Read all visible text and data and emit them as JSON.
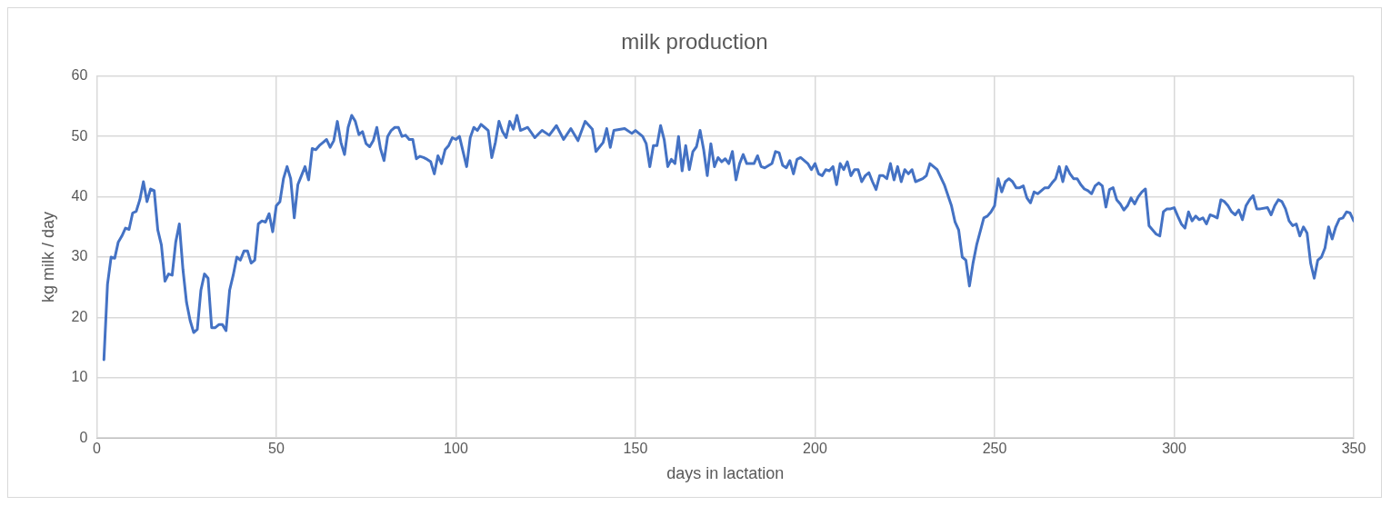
{
  "chart_data": {
    "type": "line",
    "title": "milk production",
    "xlabel": "days in lactation",
    "ylabel": "kg milk / day",
    "xlim": [
      0,
      350
    ],
    "xticks": [
      0,
      50,
      100,
      150,
      200,
      250,
      300,
      350
    ],
    "ylim": [
      0,
      60
    ],
    "yticks": [
      0,
      10,
      20,
      30,
      40,
      50,
      60
    ],
    "grid": true,
    "marker": "none",
    "line_style": "solid",
    "series": [
      {
        "color": "#4472c4",
        "x": [
          2,
          3,
          4,
          5,
          6,
          7,
          8,
          9,
          10,
          11,
          12,
          13,
          14,
          15,
          16,
          17,
          18,
          19,
          20,
          21,
          22,
          23,
          24,
          25,
          26,
          27,
          28,
          29,
          30,
          31,
          32,
          33,
          34,
          35,
          36,
          37,
          38,
          39,
          40,
          41,
          42,
          43,
          44,
          45,
          46,
          47,
          48,
          49,
          50,
          51,
          52,
          53,
          54,
          55,
          56,
          57,
          58,
          59,
          60,
          61,
          62,
          63,
          64,
          65,
          66,
          67,
          68,
          69,
          70,
          71,
          72,
          73,
          74,
          75,
          76,
          77,
          78,
          79,
          80,
          81,
          82,
          83,
          84,
          85,
          86,
          87,
          88,
          89,
          90,
          91,
          92,
          93,
          94,
          95,
          96,
          97,
          98,
          99,
          100,
          101,
          102,
          103,
          104,
          105,
          106,
          107,
          108,
          109,
          110,
          111,
          112,
          113,
          114,
          115,
          116,
          117,
          118,
          120,
          122,
          124,
          126,
          128,
          130,
          132,
          134,
          136,
          138,
          139,
          141,
          142,
          143,
          144,
          147,
          149,
          150,
          152,
          153,
          154,
          155,
          156,
          157,
          158,
          159,
          160,
          161,
          162,
          163,
          164,
          165,
          166,
          167,
          168,
          169,
          170,
          171,
          172,
          173,
          174,
          175,
          176,
          177,
          178,
          179,
          180,
          181,
          183,
          184,
          185,
          186,
          188,
          189,
          190,
          191,
          192,
          193,
          194,
          195,
          196,
          198,
          199,
          200,
          201,
          202,
          203,
          204,
          205,
          206,
          207,
          208,
          209,
          210,
          211,
          212,
          213,
          214,
          215,
          216,
          217,
          218,
          219,
          220,
          221,
          222,
          223,
          224,
          225,
          226,
          227,
          228,
          230,
          231,
          232,
          234,
          236,
          238,
          239,
          240,
          241,
          242,
          243,
          244,
          245,
          247,
          248,
          249,
          250,
          251,
          252,
          253,
          254,
          255,
          256,
          257,
          258,
          259,
          260,
          261,
          262,
          264,
          265,
          266,
          267,
          268,
          269,
          270,
          271,
          272,
          273,
          274,
          275,
          276,
          277,
          278,
          279,
          280,
          281,
          282,
          283,
          284,
          285,
          286,
          287,
          288,
          289,
          290,
          291,
          292,
          293,
          295,
          296,
          297,
          298,
          299,
          300,
          301,
          302,
          303,
          304,
          305,
          306,
          307,
          308,
          309,
          310,
          311,
          312,
          313,
          314,
          315,
          316,
          317,
          318,
          319,
          320,
          321,
          322,
          323,
          324,
          326,
          327,
          328,
          329,
          330,
          331,
          332,
          333,
          334,
          335,
          336,
          337,
          338,
          339,
          340,
          341,
          342,
          343,
          344,
          345,
          346,
          347,
          348,
          349,
          350
        ],
        "values": [
          13,
          25.5,
          30,
          29.8,
          32.5,
          33.5,
          34.8,
          34.6,
          37.3,
          37.6,
          39.5,
          42.5,
          39.2,
          41.3,
          41,
          34.5,
          32,
          26,
          27.2,
          27,
          32.5,
          35.5,
          28,
          22.5,
          19.5,
          17.5,
          18,
          24.5,
          27.2,
          26.5,
          18.3,
          18.3,
          18.8,
          18.8,
          17.8,
          24.5,
          27,
          30,
          29.5,
          31,
          31,
          29,
          29.5,
          35.5,
          36,
          35.8,
          37.2,
          34.2,
          38.5,
          39.2,
          43,
          45,
          43,
          36.5,
          42,
          43.5,
          45,
          42.8,
          48,
          47.8,
          48.5,
          49,
          49.5,
          48.2,
          49.3,
          52.5,
          49,
          47,
          51.5,
          53.5,
          52.5,
          50.3,
          50.8,
          48.8,
          48.3,
          49.3,
          51.5,
          48,
          46,
          50,
          51,
          51.5,
          51.5,
          50,
          50.2,
          49.5,
          49.5,
          46.3,
          46.7,
          46.5,
          46.2,
          45.8,
          43.8,
          46.8,
          45.5,
          47.8,
          48.5,
          49.8,
          49.5,
          50,
          47.5,
          45,
          49.8,
          51.5,
          51,
          52,
          51.5,
          51,
          46.5,
          49,
          52.5,
          50.8,
          49.8,
          52.5,
          51.2,
          53.5,
          51,
          51.5,
          49.8,
          51,
          50.2,
          51.8,
          49.5,
          51.3,
          49.3,
          52.5,
          51.2,
          47.5,
          49,
          51.3,
          48.2,
          51,
          51.3,
          50.5,
          51,
          50,
          48.8,
          45,
          48.5,
          48.5,
          51.8,
          49.5,
          45,
          46.2,
          45.5,
          50,
          44.3,
          48.5,
          44.5,
          47.5,
          48.3,
          51,
          47.8,
          43.5,
          48.8,
          45,
          46.5,
          45.8,
          46.3,
          45.5,
          47.5,
          42.8,
          45.5,
          47,
          45.5,
          45.5,
          46.8,
          45,
          44.8,
          45.5,
          47.5,
          47.3,
          45.2,
          44.8,
          46,
          43.8,
          46.2,
          46.5,
          45.5,
          44.5,
          45.5,
          43.8,
          43.5,
          44.5,
          44.3,
          45,
          42,
          45.5,
          44.5,
          45.8,
          43.5,
          44.5,
          44.5,
          42.5,
          43.5,
          44,
          42.5,
          41.2,
          43.5,
          43.5,
          43,
          45.5,
          42.8,
          45,
          42.5,
          44.5,
          43.8,
          44.5,
          42.5,
          43,
          43.5,
          45.5,
          44.5,
          42,
          38.5,
          35.8,
          34.5,
          30,
          29.5,
          25.2,
          29,
          32,
          36.5,
          36.8,
          37.5,
          38.5,
          43,
          40.8,
          42.5,
          43,
          42.5,
          41.5,
          41.5,
          41.8,
          39.8,
          39,
          40.8,
          40.5,
          41.5,
          41.5,
          42.3,
          43,
          45,
          42.5,
          45,
          43.8,
          43,
          43,
          42,
          41.3,
          41,
          40.5,
          41.8,
          42.3,
          41.8,
          38.3,
          41.2,
          41.5,
          39.5,
          38.8,
          37.8,
          38.5,
          39.8,
          38.8,
          40,
          40.8,
          41.3,
          35.2,
          33.8,
          33.5,
          37.5,
          38,
          38,
          38.2,
          36.8,
          35.5,
          34.8,
          37.5,
          36,
          36.8,
          36.2,
          36.5,
          35.5,
          37,
          36.8,
          36.5,
          39.5,
          39.2,
          38.5,
          37.5,
          37,
          37.8,
          36.2,
          38.5,
          39.5,
          40.2,
          38,
          38,
          38.2,
          37,
          38.5,
          39.5,
          39.2,
          38,
          36,
          35.2,
          35.5,
          33.5,
          35,
          34,
          29,
          26.5,
          29.5,
          30,
          31.5,
          35,
          33,
          35,
          36.3,
          36.5,
          37.5,
          37.3,
          36
        ]
      }
    ]
  }
}
